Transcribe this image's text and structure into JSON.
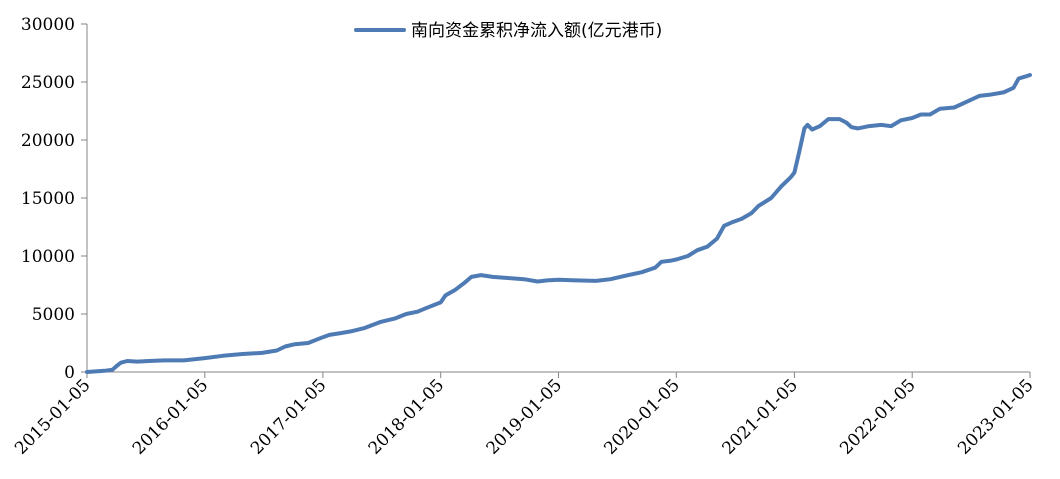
{
  "chart_data": {
    "type": "line",
    "title": "",
    "xlabel": "",
    "ylabel": "",
    "ylim": [
      0,
      30000
    ],
    "yticks": [
      0,
      5000,
      10000,
      15000,
      20000,
      25000,
      30000
    ],
    "xticks": [
      "2015-01-05",
      "2016-01-05",
      "2017-01-05",
      "2018-01-05",
      "2019-01-05",
      "2020-01-05",
      "2021-01-05",
      "2022-01-05",
      "2023-01-05"
    ],
    "legend_position": "top-center",
    "grid": false,
    "series": [
      {
        "name": "南向资金累积净流入额(亿元港币)",
        "color": "#4F7BB5",
        "points": [
          [
            "2015-01-05",
            0
          ],
          [
            "2015-02-01",
            50
          ],
          [
            "2015-03-01",
            100
          ],
          [
            "2015-03-25",
            200
          ],
          [
            "2015-04-08",
            550
          ],
          [
            "2015-04-20",
            800
          ],
          [
            "2015-05-10",
            950
          ],
          [
            "2015-06-10",
            900
          ],
          [
            "2015-07-15",
            950
          ],
          [
            "2015-09-01",
            1000
          ],
          [
            "2015-11-01",
            1000
          ],
          [
            "2016-01-05",
            1200
          ],
          [
            "2016-03-01",
            1400
          ],
          [
            "2016-05-01",
            1550
          ],
          [
            "2016-07-01",
            1650
          ],
          [
            "2016-08-15",
            1850
          ],
          [
            "2016-09-10",
            2200
          ],
          [
            "2016-10-10",
            2400
          ],
          [
            "2016-11-20",
            2500
          ],
          [
            "2017-01-05",
            3000
          ],
          [
            "2017-01-25",
            3200
          ],
          [
            "2017-03-01",
            3350
          ],
          [
            "2017-04-01",
            3500
          ],
          [
            "2017-05-15",
            3800
          ],
          [
            "2017-07-01",
            4300
          ],
          [
            "2017-08-15",
            4600
          ],
          [
            "2017-09-20",
            5000
          ],
          [
            "2017-10-25",
            5200
          ],
          [
            "2017-11-20",
            5500
          ],
          [
            "2018-01-05",
            6000
          ],
          [
            "2018-01-20",
            6600
          ],
          [
            "2018-02-20",
            7100
          ],
          [
            "2018-03-20",
            7700
          ],
          [
            "2018-04-10",
            8200
          ],
          [
            "2018-05-10",
            8350
          ],
          [
            "2018-06-15",
            8200
          ],
          [
            "2018-08-01",
            8100
          ],
          [
            "2018-09-20",
            8000
          ],
          [
            "2018-11-01",
            7800
          ],
          [
            "2018-12-01",
            7900
          ],
          [
            "2019-01-05",
            7950
          ],
          [
            "2019-03-01",
            7900
          ],
          [
            "2019-05-01",
            7850
          ],
          [
            "2019-06-15",
            8000
          ],
          [
            "2019-08-01",
            8300
          ],
          [
            "2019-09-20",
            8600
          ],
          [
            "2019-11-01",
            9000
          ],
          [
            "2019-11-20",
            9500
          ],
          [
            "2019-12-20",
            9600
          ],
          [
            "2020-01-05",
            9700
          ],
          [
            "2020-02-10",
            10000
          ],
          [
            "2020-03-10",
            10500
          ],
          [
            "2020-04-10",
            10800
          ],
          [
            "2020-05-10",
            11500
          ],
          [
            "2020-06-01",
            12600
          ],
          [
            "2020-06-25",
            12900
          ],
          [
            "2020-07-25",
            13200
          ],
          [
            "2020-08-25",
            13700
          ],
          [
            "2020-09-15",
            14300
          ],
          [
            "2020-10-25",
            15000
          ],
          [
            "2020-11-25",
            16000
          ],
          [
            "2020-12-25",
            16800
          ],
          [
            "2021-01-05",
            17200
          ],
          [
            "2021-01-20",
            19000
          ],
          [
            "2021-02-05",
            21000
          ],
          [
            "2021-02-15",
            21300
          ],
          [
            "2021-03-01",
            20900
          ],
          [
            "2021-03-25",
            21200
          ],
          [
            "2021-04-20",
            21800
          ],
          [
            "2021-05-25",
            21800
          ],
          [
            "2021-06-15",
            21500
          ],
          [
            "2021-07-01",
            21100
          ],
          [
            "2021-07-20",
            21000
          ],
          [
            "2021-08-25",
            21200
          ],
          [
            "2021-10-01",
            21300
          ],
          [
            "2021-11-01",
            21200
          ],
          [
            "2021-12-01",
            21700
          ],
          [
            "2022-01-05",
            21900
          ],
          [
            "2022-02-01",
            22200
          ],
          [
            "2022-03-01",
            22200
          ],
          [
            "2022-04-01",
            22700
          ],
          [
            "2022-05-15",
            22800
          ],
          [
            "2022-07-01",
            23400
          ],
          [
            "2022-08-01",
            23800
          ],
          [
            "2022-09-01",
            23900
          ],
          [
            "2022-10-15",
            24100
          ],
          [
            "2022-11-15",
            24500
          ],
          [
            "2022-12-01",
            25300
          ],
          [
            "2022-12-25",
            25500
          ],
          [
            "2023-01-05",
            25600
          ]
        ]
      }
    ]
  }
}
